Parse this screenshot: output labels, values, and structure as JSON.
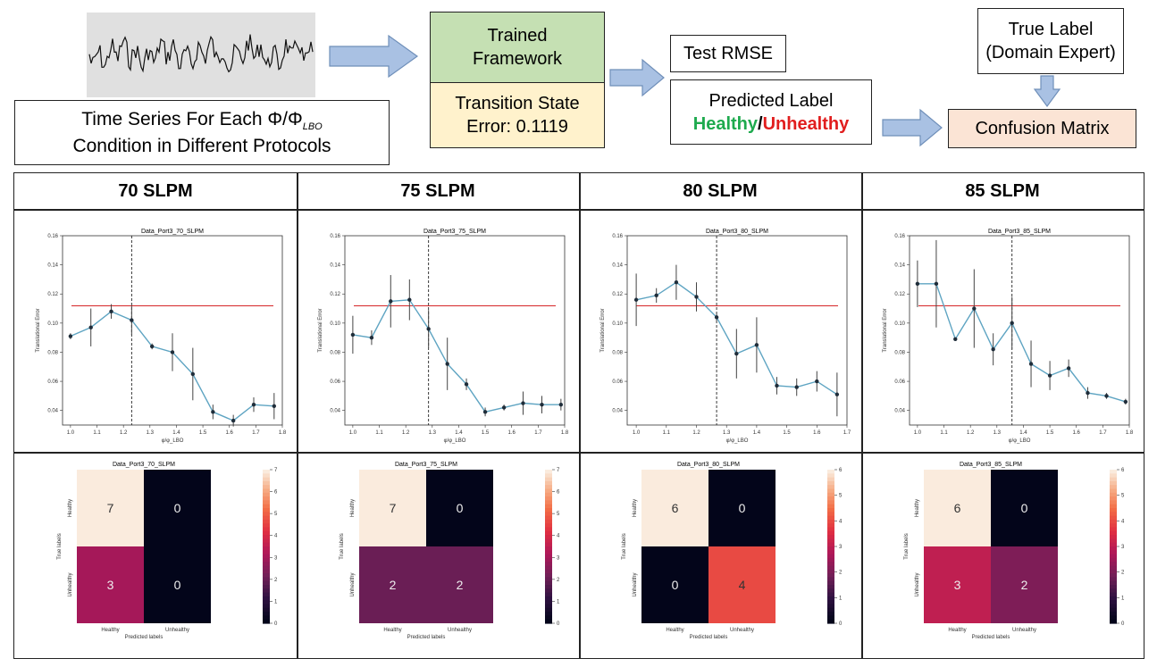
{
  "top": {
    "time_series_caption_line1": "Time Series For Each Φ/Φ",
    "time_series_caption_sub": "LBO",
    "time_series_caption_line2": "Condition in Different Protocols",
    "trained_framework": "Trained Framework",
    "transition_state": "Transition State Error: 0.1119",
    "test_rmse": "Test RMSE",
    "predicted_label": "Predicted Label",
    "healthy": "Healthy",
    "slash": "/",
    "unhealthy": "Unhealthy",
    "true_label": "True Label (Domain Expert)",
    "confusion_matrix": "Confusion Matrix"
  },
  "colors": {
    "green_box": "#c5e0b3",
    "yellow_box": "#fff2cc",
    "peach_box": "#fbe4d5",
    "arrow": "#a9c1e3",
    "healthy_text": "#1eaa4e",
    "unhealthy_text": "#e11e1e"
  },
  "columns": [
    {
      "header": "70 SLPM"
    },
    {
      "header": "75 SLPM"
    },
    {
      "header": "80 SLPM"
    },
    {
      "header": "85 SLPM"
    }
  ],
  "chart_data": [
    {
      "type": "line",
      "title": "Data_Port3_70_SLPM",
      "xlabel": "φ/φ_LBO",
      "ylabel": "Translational Error",
      "x": [
        1.0,
        1.077,
        1.154,
        1.231,
        1.308,
        1.385,
        1.462,
        1.538,
        1.615,
        1.692,
        1.769
      ],
      "y": [
        0.091,
        0.097,
        0.108,
        0.102,
        0.084,
        0.08,
        0.065,
        0.039,
        0.033,
        0.044,
        0.043
      ],
      "err": [
        0.002,
        0.013,
        0.005,
        0.01,
        0.002,
        0.013,
        0.018,
        0.005,
        0.004,
        0.005,
        0.009
      ],
      "threshold": 0.1119,
      "vline": 1.231,
      "ylim": [
        0.03,
        0.16
      ],
      "xlim": [
        0.97,
        1.8
      ],
      "xticks": [
        1.0,
        1.1,
        1.2,
        1.3,
        1.4,
        1.5,
        1.6,
        1.7,
        1.8
      ],
      "yticks": [
        0.04,
        0.06,
        0.08,
        0.1,
        0.12,
        0.14,
        0.16
      ],
      "xtick_labels": [
        "1.0",
        "1.1",
        "1.2",
        "1.3",
        "1.4",
        "1.5",
        "1.6",
        "1.7",
        "1.8"
      ],
      "ytick_labels": [
        "0.04",
        "0.06",
        "0.08",
        "0.10",
        "0.12",
        "0.14",
        "0.16"
      ]
    },
    {
      "type": "line",
      "title": "Data_Port3_75_SLPM",
      "xlabel": "φ/φ_LBO",
      "ylabel": "Translational Error",
      "x": [
        1.0,
        1.071,
        1.143,
        1.214,
        1.286,
        1.357,
        1.429,
        1.5,
        1.571,
        1.643,
        1.714,
        1.786
      ],
      "y": [
        0.092,
        0.09,
        0.115,
        0.116,
        0.096,
        0.072,
        0.058,
        0.039,
        0.042,
        0.045,
        0.044,
        0.044
      ],
      "err": [
        0.013,
        0.005,
        0.018,
        0.014,
        0.013,
        0.018,
        0.004,
        0.003,
        0.002,
        0.008,
        0.006,
        0.004
      ],
      "threshold": 0.1119,
      "vline": 1.286,
      "ylim": [
        0.03,
        0.16
      ],
      "xlim": [
        0.97,
        1.8
      ],
      "xticks": [
        1.0,
        1.1,
        1.2,
        1.3,
        1.4,
        1.5,
        1.6,
        1.7,
        1.8
      ],
      "yticks": [
        0.04,
        0.06,
        0.08,
        0.1,
        0.12,
        0.14,
        0.16
      ],
      "xtick_labels": [
        "1.0",
        "1.1",
        "1.2",
        "1.3",
        "1.4",
        "1.5",
        "1.6",
        "1.7",
        "1.8"
      ],
      "ytick_labels": [
        "0.04",
        "0.06",
        "0.08",
        "0.10",
        "0.12",
        "0.14",
        "0.16"
      ]
    },
    {
      "type": "line",
      "title": "Data_Port3_80_SLPM",
      "xlabel": "φ/φ_LBO",
      "ylabel": "Translational Error",
      "x": [
        1.0,
        1.067,
        1.133,
        1.2,
        1.267,
        1.333,
        1.4,
        1.467,
        1.533,
        1.6,
        1.667
      ],
      "y": [
        0.116,
        0.119,
        0.128,
        0.118,
        0.104,
        0.079,
        0.085,
        0.057,
        0.056,
        0.06,
        0.051
      ],
      "err": [
        0.018,
        0.005,
        0.012,
        0.01,
        0.003,
        0.017,
        0.019,
        0.006,
        0.006,
        0.007,
        0.015
      ],
      "threshold": 0.1119,
      "vline": 1.267,
      "ylim": [
        0.03,
        0.16
      ],
      "xlim": [
        0.97,
        1.7
      ],
      "xticks": [
        1.0,
        1.1,
        1.2,
        1.3,
        1.4,
        1.5,
        1.6,
        1.7
      ],
      "yticks": [
        0.04,
        0.06,
        0.08,
        0.1,
        0.12,
        0.14,
        0.16
      ],
      "xtick_labels": [
        "1.0",
        "1.1",
        "1.2",
        "1.3",
        "1.4",
        "1.5",
        "1.6",
        "1.7"
      ],
      "ytick_labels": [
        "0.04",
        "0.06",
        "0.08",
        "0.10",
        "0.12",
        "0.14",
        "0.16"
      ]
    },
    {
      "type": "line",
      "title": "Data_Port3_85_SLPM",
      "xlabel": "φ/φ_LBO",
      "ylabel": "Translational Error",
      "x": [
        1.0,
        1.071,
        1.143,
        1.214,
        1.286,
        1.357,
        1.429,
        1.5,
        1.571,
        1.643,
        1.714,
        1.786
      ],
      "y": [
        0.127,
        0.127,
        0.089,
        0.11,
        0.082,
        0.1,
        0.072,
        0.064,
        0.069,
        0.052,
        0.05,
        0.046
      ],
      "err": [
        0.016,
        0.03,
        0.001,
        0.027,
        0.011,
        0.018,
        0.016,
        0.01,
        0.006,
        0.004,
        0.002,
        0.002
      ],
      "threshold": 0.1119,
      "vline": 1.357,
      "ylim": [
        0.03,
        0.16
      ],
      "xlim": [
        0.97,
        1.8
      ],
      "xticks": [
        1.0,
        1.1,
        1.2,
        1.3,
        1.4,
        1.5,
        1.6,
        1.7,
        1.8
      ],
      "yticks": [
        0.04,
        0.06,
        0.08,
        0.1,
        0.12,
        0.14,
        0.16
      ],
      "xtick_labels": [
        "1.0",
        "1.1",
        "1.2",
        "1.3",
        "1.4",
        "1.5",
        "1.6",
        "1.7",
        "1.8"
      ],
      "ytick_labels": [
        "0.04",
        "0.06",
        "0.08",
        "0.10",
        "0.12",
        "0.14",
        "0.16"
      ]
    },
    {
      "type": "heatmap",
      "title": "Data_Port3_70_SLPM",
      "xlabel": "Predicted labels",
      "ylabel": "True labels",
      "rows": [
        "Healthy",
        "Unhealthy"
      ],
      "cols": [
        "Healthy",
        "Unhealthy"
      ],
      "values": [
        [
          7,
          0
        ],
        [
          3,
          0
        ]
      ],
      "vmax": 7,
      "colorbar_ticks": [
        0,
        1,
        2,
        3,
        4,
        5,
        6,
        7
      ],
      "colorbar_labels": [
        "0",
        "1",
        "2",
        "3",
        "4",
        "5",
        "6",
        "7"
      ]
    },
    {
      "type": "heatmap",
      "title": "Data_Port3_75_SLPM",
      "xlabel": "Predicted labels",
      "ylabel": "True labels",
      "rows": [
        "Healthy",
        "Unhealthy"
      ],
      "cols": [
        "Healthy",
        "Unhealthy"
      ],
      "values": [
        [
          7,
          0
        ],
        [
          2,
          2
        ]
      ],
      "vmax": 7,
      "colorbar_ticks": [
        0,
        1,
        2,
        3,
        4,
        5,
        6,
        7
      ],
      "colorbar_labels": [
        "0",
        "1",
        "2",
        "3",
        "4",
        "5",
        "6",
        "7"
      ]
    },
    {
      "type": "heatmap",
      "title": "Data_Port3_80_SLPM",
      "xlabel": "Predicted labels",
      "ylabel": "True labels",
      "rows": [
        "Healthy",
        "Unhealthy"
      ],
      "cols": [
        "Healthy",
        "Unhealthy"
      ],
      "values": [
        [
          6,
          0
        ],
        [
          0,
          4
        ]
      ],
      "vmax": 6,
      "colorbar_ticks": [
        0,
        1,
        2,
        3,
        4,
        5,
        6
      ],
      "colorbar_labels": [
        "0",
        "1",
        "2",
        "3",
        "4",
        "5",
        "6"
      ]
    },
    {
      "type": "heatmap",
      "title": "Data_Port3_85_SLPM",
      "xlabel": "Predicted labels",
      "ylabel": "True labels",
      "rows": [
        "Healthy",
        "Unhealthy"
      ],
      "cols": [
        "Healthy",
        "Unhealthy"
      ],
      "values": [
        [
          6,
          0
        ],
        [
          3,
          2
        ]
      ],
      "vmax": 6,
      "colorbar_ticks": [
        0,
        1,
        2,
        3,
        4,
        5,
        6
      ],
      "colorbar_labels": [
        "0",
        "1",
        "2",
        "3",
        "4",
        "5",
        "6"
      ]
    }
  ]
}
